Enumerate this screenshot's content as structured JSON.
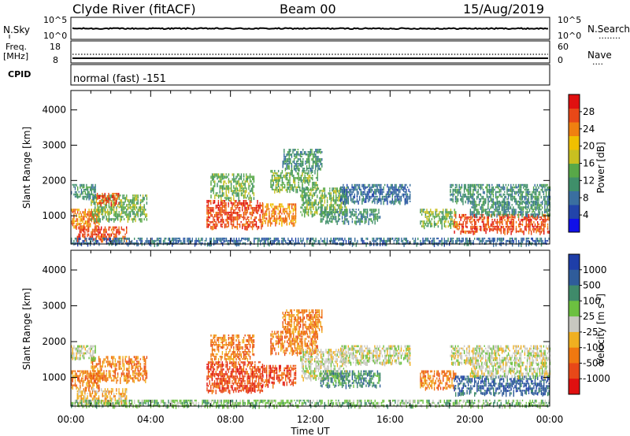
{
  "header": {
    "station": "Clyde River (fitACF)",
    "beam": "Beam 00",
    "date": "15/Aug/2019"
  },
  "top_panels": {
    "nsky": {
      "label": "N.Sky",
      "left_ticks": [
        "10^5",
        "10^0"
      ],
      "right_label": "N.Search",
      "right_ticks": [
        "10^5",
        "10^0"
      ],
      "right_line": "........"
    },
    "freq": {
      "label_1": "Freq.",
      "label_2": "[MHz]",
      "left_ticks": [
        "18",
        "8"
      ],
      "right_label": "Nave",
      "right_ticks": [
        "60",
        "0"
      ],
      "right_line": "...."
    },
    "cpid": {
      "label": "CPID",
      "value": "normal (fast) -151"
    }
  },
  "chart_data": [
    {
      "type": "heatmap",
      "name": "power",
      "ylabel": "Slant Range [km]",
      "xlabel": "",
      "x_ticks": [
        "00:00",
        "04:00",
        "08:00",
        "12:00",
        "16:00",
        "20:00",
        "00:00"
      ],
      "y_ticks": [
        1000,
        2000,
        3000,
        4000
      ],
      "ylim": [
        200,
        4550
      ],
      "colorbar": {
        "label": "Power [dB]",
        "ticks": [
          "4",
          "8",
          "12",
          "16",
          "20",
          "24",
          "28"
        ],
        "colors": [
          "#1010e8",
          "#2244aa",
          "#3a6fa0",
          "#3f8f6a",
          "#58a848",
          "#c8c020",
          "#f0c000",
          "#f08010",
          "#e84818",
          "#e01010"
        ]
      },
      "regions": [
        {
          "t0": 0.0,
          "t1": 1.4,
          "r0": 700,
          "r1": 1200,
          "level": 7
        },
        {
          "t0": 1.0,
          "t1": 3.8,
          "r0": 900,
          "r1": 1600,
          "level": 4
        },
        {
          "t0": 0.0,
          "t1": 1.2,
          "r0": 1550,
          "r1": 1900,
          "level": 3
        },
        {
          "t0": 1.3,
          "t1": 2.4,
          "r0": 1350,
          "r1": 1650,
          "level": 8
        },
        {
          "t0": 0.3,
          "t1": 2.8,
          "r0": 300,
          "r1": 700,
          "level": 8
        },
        {
          "t0": 6.8,
          "t1": 9.6,
          "r0": 650,
          "r1": 1450,
          "level": 8
        },
        {
          "t0": 7.0,
          "t1": 9.2,
          "r0": 1500,
          "r1": 2200,
          "level": 4
        },
        {
          "t0": 9.6,
          "t1": 11.3,
          "r0": 800,
          "r1": 1350,
          "level": 7
        },
        {
          "t0": 10.0,
          "t1": 12.4,
          "r0": 1700,
          "r1": 2300,
          "level": 4
        },
        {
          "t0": 10.6,
          "t1": 12.6,
          "r0": 2300,
          "r1": 2900,
          "level": 3
        },
        {
          "t0": 11.5,
          "t1": 13.8,
          "r0": 1000,
          "r1": 1800,
          "level": 4
        },
        {
          "t0": 13.5,
          "t1": 17.0,
          "r0": 1400,
          "r1": 1900,
          "level": 2
        },
        {
          "t0": 12.5,
          "t1": 15.5,
          "r0": 800,
          "r1": 1200,
          "level": 3
        },
        {
          "t0": 17.5,
          "t1": 19.3,
          "r0": 700,
          "r1": 1200,
          "level": 4
        },
        {
          "t0": 19.2,
          "t1": 24.0,
          "r0": 550,
          "r1": 1050,
          "level": 8
        },
        {
          "t0": 20.0,
          "t1": 24.0,
          "r0": 1050,
          "r1": 1400,
          "level": 3
        },
        {
          "t0": 19.0,
          "t1": 24.0,
          "r0": 1400,
          "r1": 1900,
          "level": 3
        },
        {
          "t0": 0.0,
          "t1": 24.0,
          "r0": 200,
          "r1": 380,
          "level": 2
        }
      ]
    },
    {
      "type": "heatmap",
      "name": "velocity",
      "ylabel": "Slant Range [km]",
      "xlabel": "Time UT",
      "x_ticks": [
        "00:00",
        "04:00",
        "08:00",
        "12:00",
        "16:00",
        "20:00",
        "00:00"
      ],
      "y_ticks": [
        1000,
        2000,
        3000,
        4000
      ],
      "ylim": [
        200,
        4550
      ],
      "colorbar": {
        "label": "Velocity [m s^-1]",
        "ticks": [
          "1000",
          "500",
          "100",
          "25",
          "-25",
          "-100",
          "-500",
          "-1000"
        ],
        "colors": [
          "#1e3ea8",
          "#2f5c9a",
          "#3f8a6a",
          "#6cc040",
          "#c8c8c0",
          "#f0b020",
          "#f07810",
          "#e84818",
          "#e01010"
        ]
      },
      "regions": [
        {
          "t0": 0.0,
          "t1": 1.4,
          "r0": 700,
          "r1": 1200,
          "level": 6
        },
        {
          "t0": 1.0,
          "t1": 3.8,
          "r0": 900,
          "r1": 1600,
          "level": 6
        },
        {
          "t0": 0.0,
          "t1": 1.2,
          "r0": 1550,
          "r1": 1900,
          "level": 4
        },
        {
          "t0": 0.3,
          "t1": 2.8,
          "r0": 300,
          "r1": 700,
          "level": 5
        },
        {
          "t0": 6.8,
          "t1": 9.6,
          "r0": 650,
          "r1": 1450,
          "level": 7
        },
        {
          "t0": 7.0,
          "t1": 9.2,
          "r0": 1500,
          "r1": 2200,
          "level": 6
        },
        {
          "t0": 9.6,
          "t1": 11.3,
          "r0": 800,
          "r1": 1350,
          "level": 7
        },
        {
          "t0": 10.0,
          "t1": 12.4,
          "r0": 1700,
          "r1": 2300,
          "level": 6
        },
        {
          "t0": 10.6,
          "t1": 12.6,
          "r0": 2300,
          "r1": 2900,
          "level": 6
        },
        {
          "t0": 11.5,
          "t1": 13.8,
          "r0": 1000,
          "r1": 1800,
          "level": 4
        },
        {
          "t0": 13.5,
          "t1": 17.0,
          "r0": 1400,
          "r1": 1900,
          "level": 4
        },
        {
          "t0": 12.5,
          "t1": 15.5,
          "r0": 800,
          "r1": 1200,
          "level": 2
        },
        {
          "t0": 17.5,
          "t1": 19.3,
          "r0": 700,
          "r1": 1200,
          "level": 6
        },
        {
          "t0": 19.2,
          "t1": 24.0,
          "r0": 550,
          "r1": 1050,
          "level": 1
        },
        {
          "t0": 20.0,
          "t1": 24.0,
          "r0": 1050,
          "r1": 1400,
          "level": 4
        },
        {
          "t0": 19.0,
          "t1": 24.0,
          "r0": 1400,
          "r1": 1900,
          "level": 4
        },
        {
          "t0": 0.0,
          "t1": 24.0,
          "r0": 200,
          "r1": 380,
          "level": 3
        }
      ]
    }
  ]
}
